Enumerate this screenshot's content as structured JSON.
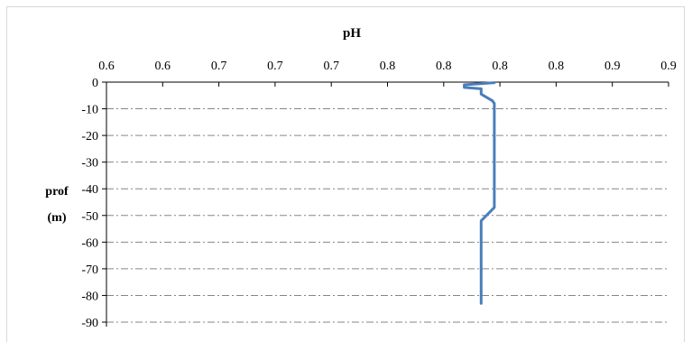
{
  "chart_data": {
    "type": "line",
    "title": "pH",
    "xlabel": "pH",
    "ylabel_lines": [
      "prof",
      "(m)"
    ],
    "x_axis_position": "top",
    "x_tick_labels": [
      "0.6",
      "0.6",
      "0.7",
      "0.7",
      "0.7",
      "0.8",
      "0.8",
      "0.8",
      "0.8",
      "0.9",
      "0.9"
    ],
    "xlim": [
      0.6,
      0.9
    ],
    "y_tick_labels": [
      "0",
      "-10",
      "-20",
      "-30",
      "-40",
      "-50",
      "-60",
      "-70",
      "-80",
      "-90"
    ],
    "ylim": [
      -90,
      0
    ],
    "grid": "horizontal dash-dot",
    "series": [
      {
        "color": "#4a7ebb",
        "points": [
          {
            "x": 0.807,
            "y": -0.2
          },
          {
            "x": 0.791,
            "y": -1.0
          },
          {
            "x": 0.791,
            "y": -2.0
          },
          {
            "x": 0.8,
            "y": -2.5
          },
          {
            "x": 0.8,
            "y": -4.5
          },
          {
            "x": 0.806,
            "y": -7.0
          },
          {
            "x": 0.807,
            "y": -8.0
          },
          {
            "x": 0.807,
            "y": -47.0
          },
          {
            "x": 0.8,
            "y": -52.0
          },
          {
            "x": 0.8,
            "y": -83.0
          }
        ]
      }
    ]
  }
}
